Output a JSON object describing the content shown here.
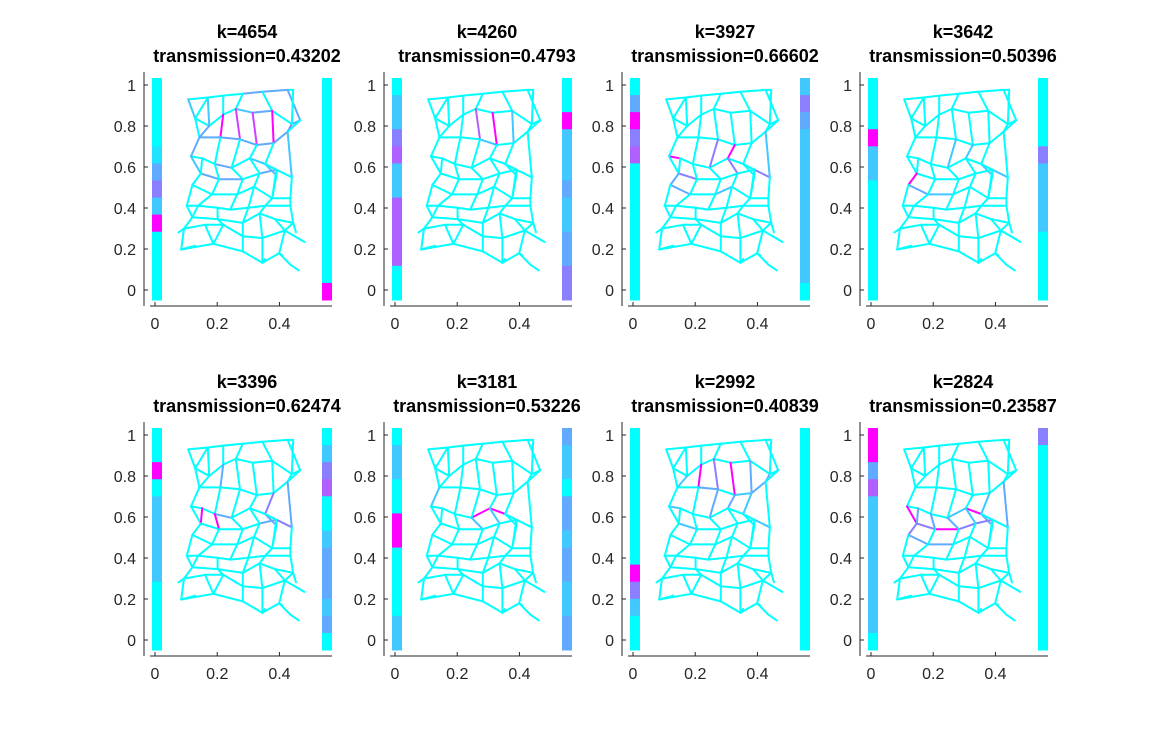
{
  "colors": {
    "palette": [
      "#00ffff",
      "#20e4ff",
      "#40c8ff",
      "#60aaff",
      "#8a80ff",
      "#b060ff",
      "#d040ff",
      "#ff00ff"
    ],
    "axis": "#262626",
    "title": "#000000"
  },
  "chart_data": [
    {
      "type": "network",
      "k_label": "k=4654",
      "transmission_label": "transmission=0.43202",
      "k": 4654,
      "transmission": 0.43202,
      "xlim": [
        0,
        0.45
      ],
      "ylim": [
        0,
        1
      ],
      "x_ticks": [
        "0",
        "0.2",
        "0.4"
      ],
      "y_ticks": [
        "0",
        "0.2",
        "0.4",
        "0.6",
        "0.8",
        "1"
      ],
      "left_bar": [
        0,
        0,
        0,
        0,
        1,
        3,
        4,
        2,
        7,
        0,
        0,
        0,
        0
      ],
      "right_bar": [
        0,
        0,
        0,
        0,
        0,
        0,
        0,
        0,
        0,
        0,
        0,
        0,
        7
      ],
      "highlight": {
        "3": 3,
        "4": 3,
        "6": 2,
        "10": 2,
        "11": 3,
        "13": 3,
        "14": 3,
        "17": 2,
        "20": 3,
        "21": 3,
        "22": 3,
        "23": 3,
        "24": 3,
        "25": 3,
        "26": 4,
        "27": 7,
        "28": 6,
        "29": 6,
        "30": 7,
        "32": 3,
        "35": 3,
        "37": 2,
        "38": 2,
        "45": 2,
        "46": 3,
        "47": 3,
        "49": 3,
        "55": 2
      }
    },
    {
      "type": "network",
      "k_label": "k=4260",
      "transmission_label": "transmission=0.4793",
      "k": 4260,
      "transmission": 0.4793,
      "xlim": [
        0,
        0.45
      ],
      "ylim": [
        0,
        1
      ],
      "x_ticks": [
        "0",
        "0.2",
        "0.4"
      ],
      "y_ticks": [
        "0",
        "0.2",
        "0.4",
        "0.6",
        "0.8",
        "1"
      ],
      "left_bar": [
        0,
        2,
        2,
        4,
        5,
        2,
        2,
        5,
        5,
        5,
        5,
        0,
        0
      ],
      "right_bar": [
        0,
        0,
        7,
        2,
        2,
        2,
        3,
        2,
        2,
        3,
        3,
        4,
        4
      ],
      "highlight": {
        "23": 2,
        "28": 5,
        "29": 7,
        "30": 2
      }
    },
    {
      "type": "network",
      "k_label": "k=3927",
      "transmission_label": "transmission=0.66602",
      "k": 3927,
      "transmission": 0.66602,
      "xlim": [
        0,
        0.45
      ],
      "ylim": [
        0,
        1
      ],
      "x_ticks": [
        "0",
        "0.2",
        "0.4"
      ],
      "y_ticks": [
        "0",
        "0.2",
        "0.4",
        "0.6",
        "0.8",
        "1"
      ],
      "left_bar": [
        0,
        3,
        7,
        4,
        5,
        0,
        0,
        0,
        0,
        0,
        0,
        0,
        0
      ],
      "right_bar": [
        2,
        4,
        3,
        2,
        2,
        2,
        2,
        2,
        2,
        2,
        2,
        2,
        0
      ],
      "highlight": {
        "33": 7,
        "40": 4,
        "42": 4,
        "44": 7,
        "46": 4,
        "53": 4,
        "55": 2,
        "56": 3,
        "57": 3,
        "59": 2
      }
    },
    {
      "type": "network",
      "k_label": "k=3642",
      "transmission_label": "transmission=0.50396",
      "k": 3642,
      "transmission": 0.50396,
      "xlim": [
        0,
        0.45
      ],
      "ylim": [
        0,
        1
      ],
      "x_ticks": [
        "0",
        "0.2",
        "0.4"
      ],
      "y_ticks": [
        "0",
        "0.2",
        "0.4",
        "0.6",
        "0.8",
        "1"
      ],
      "left_bar": [
        0,
        0,
        0,
        7,
        2,
        2,
        0,
        0,
        0,
        0,
        0,
        0,
        0
      ],
      "right_bar": [
        0,
        0,
        0,
        0,
        4,
        2,
        2,
        2,
        2,
        0,
        0,
        0,
        0
      ],
      "highlight": {
        "38": 2,
        "40": 2,
        "42": 2,
        "44": 2,
        "56": 7,
        "57": 3,
        "58": 2
      }
    },
    {
      "type": "network",
      "k_label": "k=3396",
      "transmission_label": "transmission=0.62474",
      "k": 3396,
      "transmission": 0.62474,
      "xlim": [
        0,
        0.45
      ],
      "ylim": [
        0,
        1
      ],
      "x_ticks": [
        "0",
        "0.2",
        "0.4"
      ],
      "y_ticks": [
        "0",
        "0.2",
        "0.4",
        "0.6",
        "0.8",
        "1"
      ],
      "left_bar": [
        0,
        0,
        7,
        0,
        2,
        2,
        2,
        2,
        2,
        0,
        0,
        0,
        0
      ],
      "right_bar": [
        0,
        2,
        4,
        5,
        0,
        0,
        2,
        3,
        3,
        3,
        2,
        3,
        0
      ],
      "highlight": {
        "27": 3,
        "35": 3,
        "38": 3,
        "39": 3,
        "40": 4,
        "41": 4,
        "49": 3,
        "50": 7,
        "51": 7,
        "55": 3
      }
    },
    {
      "type": "network",
      "k_label": "k=3181",
      "transmission_label": "transmission=0.53226",
      "k": 3181,
      "transmission": 0.53226,
      "xlim": [
        0,
        0.45
      ],
      "ylim": [
        0,
        1
      ],
      "x_ticks": [
        "0",
        "0.2",
        "0.4"
      ],
      "y_ticks": [
        "0",
        "0.2",
        "0.4",
        "0.6",
        "0.8",
        "1"
      ],
      "left_bar": [
        0,
        2,
        2,
        0,
        0,
        7,
        7,
        0,
        0,
        0,
        0,
        2,
        2
      ],
      "right_bar": [
        3,
        2,
        2,
        0,
        3,
        3,
        2,
        3,
        3,
        2,
        2,
        3,
        3
      ],
      "highlight": {
        "32": 2,
        "36": 7,
        "37": 7,
        "52": 2,
        "53": 2
      }
    },
    {
      "type": "network",
      "k_label": "k=2992",
      "transmission_label": "transmission=0.40839",
      "k": 2992,
      "transmission": 0.40839,
      "xlim": [
        0,
        0.45
      ],
      "ylim": [
        0,
        1
      ],
      "x_ticks": [
        "0",
        "0.2",
        "0.4"
      ],
      "y_ticks": [
        "0",
        "0.2",
        "0.4",
        "0.6",
        "0.8",
        "1"
      ],
      "left_bar": [
        0,
        0,
        0,
        0,
        0,
        0,
        0,
        0,
        7,
        4,
        2,
        0,
        0
      ],
      "right_bar": [
        0,
        0,
        0,
        0,
        0,
        0,
        0,
        0,
        0,
        0,
        0,
        0,
        0
      ],
      "highlight": {
        "20": 2,
        "22": 3,
        "24": 2,
        "25": 3,
        "26": 3,
        "27": 7,
        "28": 4,
        "29": 7,
        "30": 3,
        "33": 2,
        "40": 2,
        "41": 2,
        "42": 3,
        "44": 3,
        "46": 2
      }
    },
    {
      "type": "network",
      "k_label": "k=2824",
      "transmission_label": "transmission=0.23587",
      "k": 2824,
      "transmission": 0.23587,
      "xlim": [
        0,
        0.45
      ],
      "ylim": [
        0,
        1
      ],
      "x_ticks": [
        "0",
        "0.2",
        "0.4"
      ],
      "y_ticks": [
        "0",
        "0.2",
        "0.4",
        "0.6",
        "0.8",
        "1"
      ],
      "left_bar": [
        7,
        7,
        3,
        5,
        2,
        2,
        2,
        2,
        2,
        2,
        2,
        2,
        0
      ],
      "right_bar": [
        4,
        0,
        0,
        0,
        0,
        0,
        0,
        0,
        0,
        0,
        0,
        0,
        0
      ],
      "highlight": {
        "36": 2,
        "37": 7,
        "38": 3,
        "41": 2,
        "45": 7,
        "46": 4,
        "47": 7,
        "48": 4,
        "49": 4,
        "50": 3,
        "51": 3,
        "52": 3,
        "53": 2,
        "55": 3,
        "56": 4,
        "57": 3,
        "58": 3
      }
    }
  ]
}
